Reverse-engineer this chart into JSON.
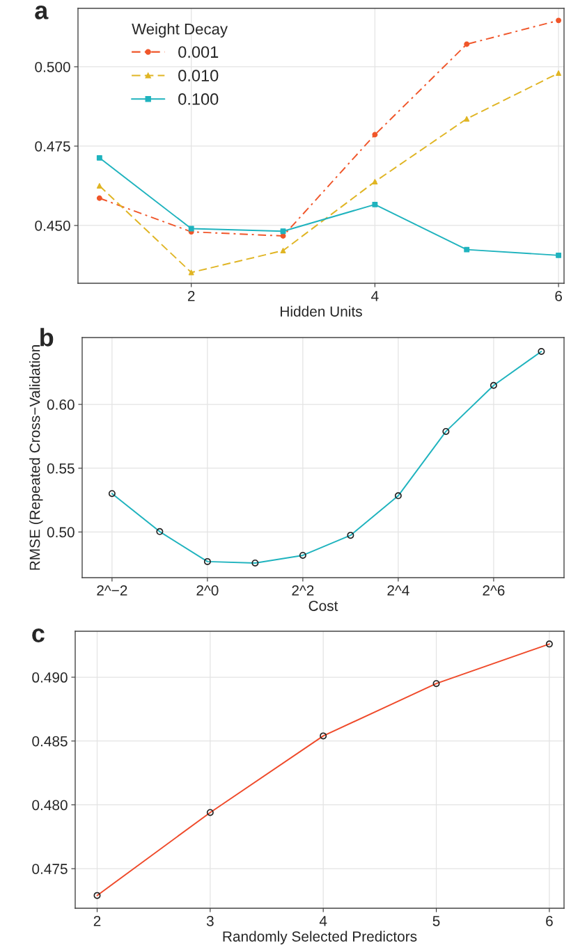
{
  "chart_data": [
    {
      "type": "line",
      "title": "a",
      "xlabel": "Hidden Units",
      "legend_title": "Weight Decay",
      "legend": "top left",
      "grid": true,
      "x": [
        1,
        2,
        3,
        4,
        5,
        6
      ],
      "xlim": [
        0.766,
        6.06
      ],
      "xticks": [
        2,
        4,
        6
      ],
      "ylim": [
        0.4318,
        0.5184
      ],
      "yticks": [
        {
          "value": 0.45,
          "label": "0.450"
        },
        {
          "value": 0.475,
          "label": "0.475"
        },
        {
          "value": 0.5,
          "label": "0.500"
        }
      ],
      "series": [
        {
          "name": "0.001",
          "color": "#f0562a",
          "marker": "circle",
          "line_style": "dashdot",
          "values": [
            0.4586,
            0.448,
            0.4467,
            0.4786,
            0.5071,
            0.5146
          ]
        },
        {
          "name": "0.010",
          "color": "#e0b524",
          "marker": "triangle",
          "line_style": "dashed",
          "values": [
            0.4625,
            0.4352,
            0.4421,
            0.4638,
            0.4836,
            0.498
          ]
        },
        {
          "name": "0.100",
          "color": "#1fb3be",
          "marker": "square",
          "line_style": "solid",
          "values": [
            0.4713,
            0.449,
            0.4482,
            0.4566,
            0.4424,
            0.4406
          ]
        }
      ]
    },
    {
      "type": "line",
      "title": "b",
      "xlabel": "Cost",
      "ylabel": "RMSE (Repeated Cross−Validation",
      "grid": true,
      "log": "x",
      "marker": "circle",
      "line_style": "solid",
      "x": [
        0.25,
        0.5,
        1,
        2,
        4,
        8,
        16,
        32,
        64,
        128
      ],
      "xlim": [
        0.162,
        178
      ],
      "xticks": [
        {
          "value": 0.25,
          "label": "2^−2"
        },
        {
          "value": 1,
          "label": "2^0"
        },
        {
          "value": 4,
          "label": "2^2"
        },
        {
          "value": 16,
          "label": "2^4"
        },
        {
          "value": 64,
          "label": "2^6"
        }
      ],
      "ylim": [
        0.4642,
        0.6524
      ],
      "yticks": [
        {
          "value": 0.5,
          "label": "0.50"
        },
        {
          "value": 0.55,
          "label": "0.55"
        },
        {
          "value": 0.6,
          "label": "0.60"
        }
      ],
      "series": [
        {
          "color": "#1fb3be",
          "values": [
            0.5301,
            0.5003,
            0.4768,
            0.4757,
            0.4817,
            0.4974,
            0.5284,
            0.5788,
            0.6149,
            0.6415
          ]
        }
      ]
    },
    {
      "type": "line",
      "title": "c",
      "xlabel": "Randomly Selected Predictors",
      "grid": true,
      "marker": "circle",
      "line_style": "solid",
      "x": [
        2,
        3,
        4,
        5,
        6
      ],
      "xlim": [
        1.806,
        6.13
      ],
      "xticks": [
        2,
        3,
        4,
        5,
        6
      ],
      "ylim": [
        0.4719,
        0.4936
      ],
      "yticks": [
        {
          "value": 0.475,
          "label": "0.475"
        },
        {
          "value": 0.48,
          "label": "0.480"
        },
        {
          "value": 0.485,
          "label": "0.485"
        },
        {
          "value": 0.49,
          "label": "0.490"
        }
      ],
      "series": [
        {
          "color": "#ef4a2a",
          "values": [
            0.4729,
            0.4794,
            0.4854,
            0.4895,
            0.4926
          ]
        }
      ]
    }
  ]
}
